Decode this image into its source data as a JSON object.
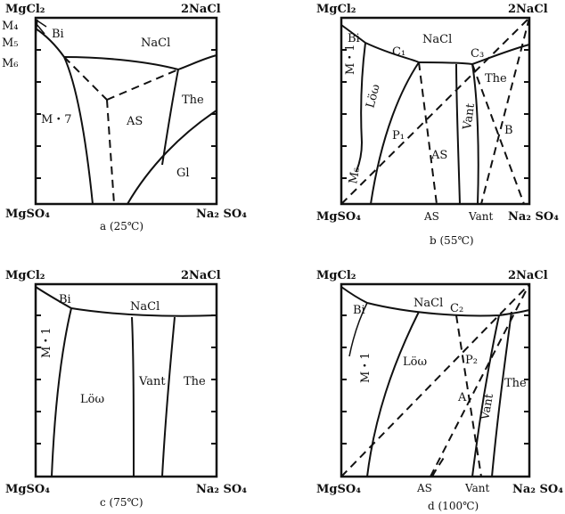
{
  "panels": {
    "a": {
      "corners": {
        "top_left": "MgCl₂",
        "top_right": "2NaCl",
        "bottom_left": "MgSO₄",
        "bottom_right": "Na₂ SO₄"
      },
      "caption": "a (25℃)",
      "regions": {
        "nacl": "NaCl",
        "m7": "M・7",
        "as": "AS",
        "the": "The",
        "gl": "Gl",
        "bi": "Bi",
        "m4": "M₄",
        "m5": "M₅",
        "m6": "M₆"
      }
    },
    "b": {
      "corners": {
        "top_left": "MgCl₂",
        "top_right": "2NaCl",
        "bottom_left": "MgSO₄",
        "bottom_right": "Na₂ SO₄"
      },
      "caption": "b (55℃)",
      "bottom_marks": {
        "as": "AS",
        "vant": "Vant"
      },
      "regions": {
        "nacl": "NaCl",
        "bi": "Bi",
        "m1": "M・1",
        "low": "Löω",
        "m6": "M₆",
        "as": "AS",
        "vant": "Vant",
        "the": "The",
        "c1": "C₁",
        "c3": "C₃",
        "p1": "P₁",
        "b": "B"
      }
    },
    "c": {
      "corners": {
        "top_left": "MgCl₂",
        "top_right": "2NaCl",
        "bottom_left": "MgSO₄",
        "bottom_right": "Na₂ SO₄"
      },
      "caption": "c (75℃)",
      "regions": {
        "nacl": "NaCl",
        "bi": "Bi",
        "m1": "M・1",
        "low": "Löω",
        "vant": "Vant",
        "the": "The"
      }
    },
    "d": {
      "corners": {
        "top_left": "MgCl₂",
        "top_right": "2NaCl",
        "bottom_left": "MgSO₄",
        "bottom_right": "Na₂ SO₄"
      },
      "caption": "d (100℃)",
      "bottom_marks": {
        "as": "AS",
        "vant": "Vant"
      },
      "regions": {
        "nacl": "NaCl",
        "bi": "Bi",
        "m1": "M・1",
        "low": "Löω",
        "c2": "C₂",
        "p2": "P₂",
        "a": "A",
        "vant": "Vant",
        "the": "The"
      }
    }
  }
}
